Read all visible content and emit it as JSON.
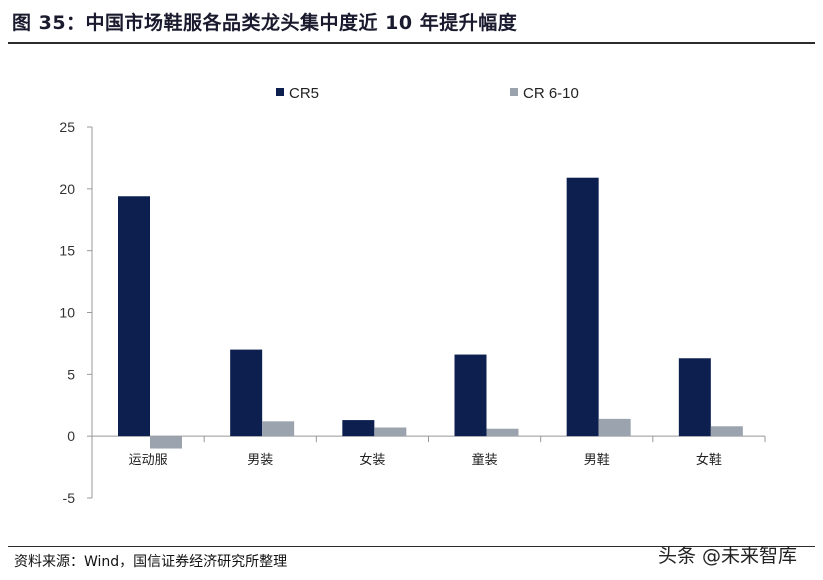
{
  "title": "图 35：中国市场鞋服各品类龙头集中度近 10 年提升幅度",
  "source": "资料来源：Wind，国信证券经济研究所整理",
  "watermark": "头条 @未来智库",
  "chart_data": {
    "type": "bar",
    "categories": [
      "运动服",
      "男装",
      "女装",
      "童装",
      "男鞋",
      "女鞋"
    ],
    "series": [
      {
        "name": "CR5",
        "color": "#0c1f4f",
        "values": [
          19.4,
          7.0,
          1.3,
          6.6,
          20.9,
          6.3
        ]
      },
      {
        "name": "CR 6-10",
        "color": "#9aa3ae",
        "values": [
          -1.0,
          1.2,
          0.7,
          0.6,
          1.4,
          0.8
        ]
      }
    ],
    "ylim": [
      -5,
      25
    ],
    "yticks": [
      25,
      20,
      15,
      10,
      5,
      0,
      -5
    ],
    "legend_position": "top-center",
    "grid": false
  }
}
